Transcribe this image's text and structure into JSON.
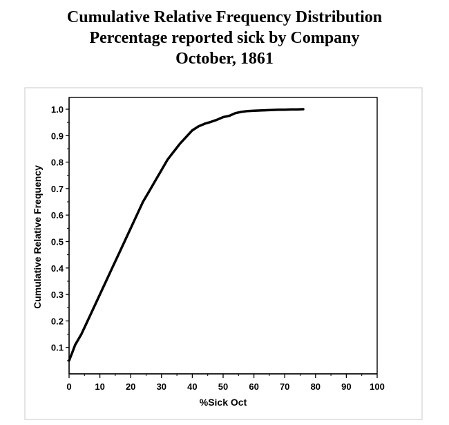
{
  "chart_data": {
    "type": "line",
    "title": [
      "Cumulative Relative Frequency Distribution",
      "Percentage reported sick by Company",
      "October, 1861"
    ],
    "xlabel": "%Sick Oct",
    "ylabel": "Cumulative Relative Frequency",
    "xlim": [
      0,
      100
    ],
    "ylim": [
      0,
      1.05
    ],
    "x_ticks": [
      0,
      10,
      20,
      30,
      40,
      50,
      60,
      70,
      80,
      90,
      100
    ],
    "x_tick_labels": [
      "0",
      "10",
      "20",
      "30",
      "40",
      "50",
      "60",
      "70",
      "80",
      "90",
      "100"
    ],
    "y_ticks": [
      0.1,
      0.2,
      0.3,
      0.4,
      0.5,
      0.6,
      0.7,
      0.8,
      0.9,
      1.0
    ],
    "y_tick_labels": [
      "0.1",
      "0.2",
      "0.3",
      "0.4",
      "0.5",
      "0.6",
      "0.7",
      "0.8",
      "0.9",
      "1.0"
    ],
    "grid": false,
    "series": [
      {
        "name": "Cumulative Relative Frequency",
        "x": [
          0,
          1,
          2,
          4,
          6,
          8,
          10,
          12,
          14,
          16,
          18,
          20,
          22,
          24,
          26,
          28,
          30,
          32,
          34,
          36,
          38,
          40,
          42,
          44,
          46,
          48,
          50,
          52,
          54,
          56,
          58,
          60,
          62,
          64,
          66,
          68,
          70,
          72,
          74,
          76
        ],
        "y": [
          0.05,
          0.08,
          0.11,
          0.15,
          0.2,
          0.25,
          0.3,
          0.35,
          0.4,
          0.45,
          0.5,
          0.55,
          0.6,
          0.65,
          0.69,
          0.73,
          0.77,
          0.81,
          0.84,
          0.87,
          0.895,
          0.92,
          0.935,
          0.945,
          0.952,
          0.96,
          0.97,
          0.975,
          0.985,
          0.99,
          0.993,
          0.994,
          0.995,
          0.996,
          0.997,
          0.998,
          0.998,
          0.999,
          0.999,
          1.0
        ]
      }
    ]
  }
}
